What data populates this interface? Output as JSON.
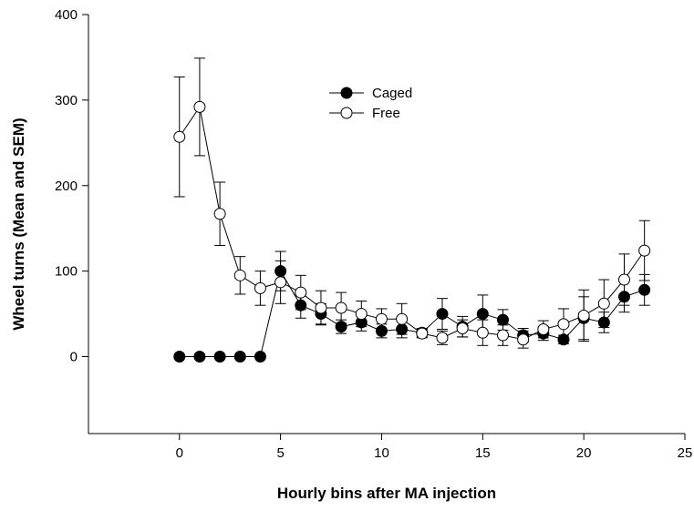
{
  "chart_data": {
    "type": "line",
    "xlabel": "Hourly bins after MA injection",
    "ylabel": "Wheel turns (Mean and SEM)",
    "x": [
      0,
      1,
      2,
      3,
      4,
      5,
      6,
      7,
      8,
      9,
      10,
      11,
      12,
      13,
      14,
      15,
      16,
      17,
      18,
      19,
      20,
      21,
      22,
      23
    ],
    "series": [
      {
        "name": "Caged",
        "color": "#000000",
        "values": [
          0,
          0,
          0,
          0,
          0,
          100,
          60,
          50,
          35,
          40,
          30,
          32,
          28,
          50,
          35,
          50,
          43,
          25,
          27,
          20,
          45,
          40,
          70,
          78
        ],
        "errors": [
          0,
          0,
          0,
          0,
          0,
          23,
          15,
          12,
          8,
          10,
          8,
          10,
          5,
          18,
          12,
          22,
          12,
          8,
          8,
          5,
          25,
          12,
          18,
          18
        ]
      },
      {
        "name": "Free",
        "color": "#ffffff",
        "values": [
          257,
          292,
          167,
          95,
          80,
          87,
          75,
          57,
          57,
          50,
          44,
          44,
          27,
          22,
          33,
          28,
          25,
          20,
          32,
          38,
          48,
          62,
          90,
          124
        ],
        "errors": [
          70,
          57,
          37,
          22,
          20,
          25,
          20,
          20,
          18,
          15,
          12,
          18,
          5,
          8,
          10,
          15,
          12,
          10,
          10,
          18,
          30,
          28,
          30,
          35
        ]
      }
    ],
    "xlim": [
      -4.5,
      25
    ],
    "ylim": [
      -90,
      400
    ],
    "xticks": [
      0,
      5,
      10,
      15,
      20,
      25
    ],
    "yticks": [
      0,
      100,
      200,
      300,
      400
    ]
  }
}
